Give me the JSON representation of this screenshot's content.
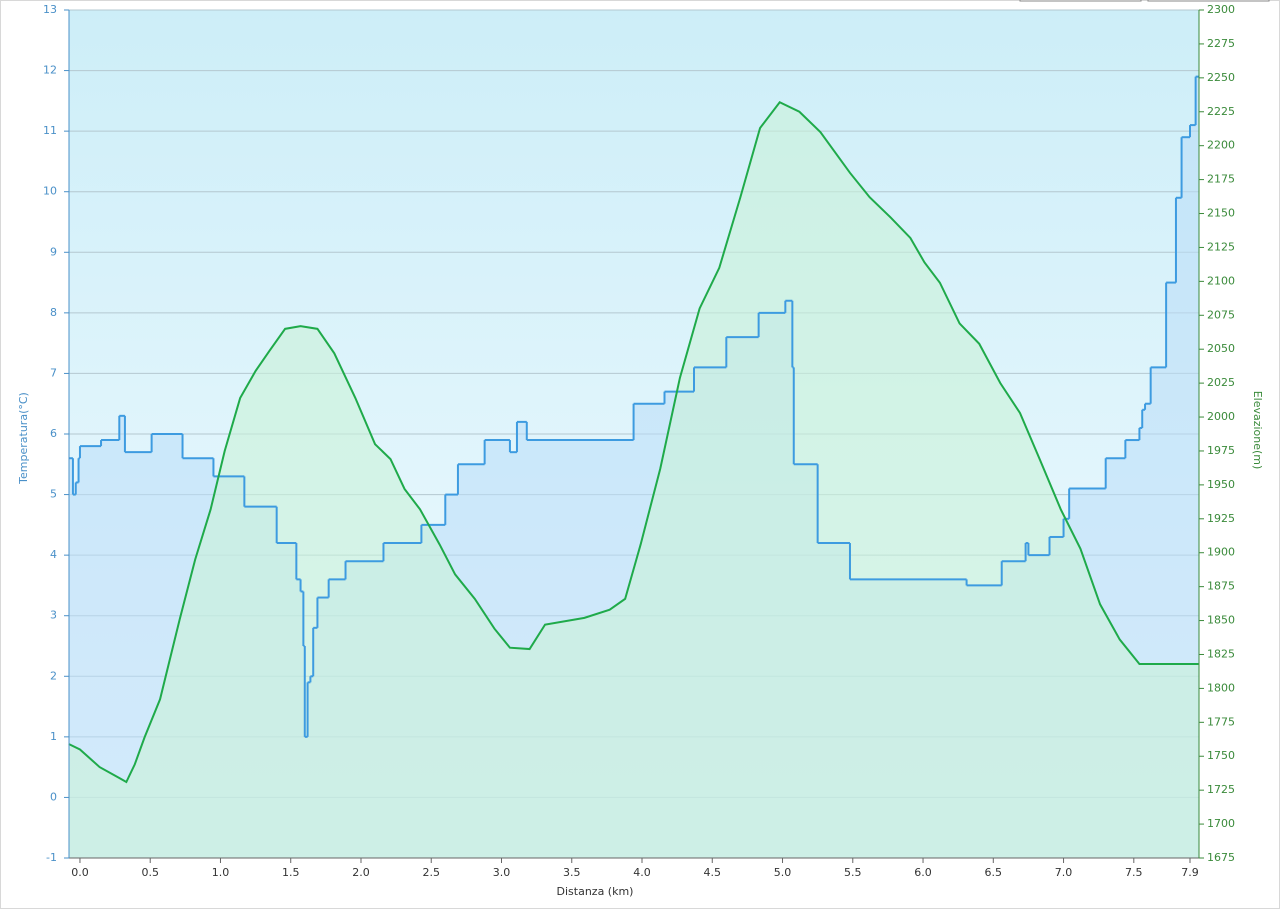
{
  "chart_data": {
    "type": "line",
    "xlabel": "Distanza  (km)",
    "ylabel": "Temperatura(°C)",
    "y2label": "Elevazione(m)",
    "xlim": [
      -0.078,
      7.964
    ],
    "xticks": [
      {
        "value": 0,
        "label": "0.0"
      },
      0.5,
      {
        "value": 1,
        "label": "1.0"
      },
      1.5,
      {
        "value": 2,
        "label": "2.0"
      },
      2.5,
      {
        "value": 3,
        "label": "3.0"
      },
      3.5,
      {
        "value": 4,
        "label": "4.0"
      },
      4.5,
      {
        "value": 5,
        "label": "5.0"
      },
      5.5,
      {
        "value": 6,
        "label": "6.0"
      },
      6.5,
      {
        "value": 7,
        "label": "7.0"
      },
      7.5,
      7.9
    ],
    "ylim": [
      -1,
      13
    ],
    "yticks": [
      -1,
      0,
      1,
      2,
      3,
      4,
      5,
      6,
      7,
      8,
      9,
      10,
      11,
      12,
      13
    ],
    "y2lim": [
      1675,
      2300
    ],
    "y2ticks": [
      1675,
      1700,
      1725,
      1750,
      1775,
      1800,
      1825,
      1850,
      1875,
      1900,
      1925,
      1950,
      1975,
      2000,
      2025,
      2050,
      2075,
      2100,
      2125,
      2150,
      2175,
      2200,
      2225,
      2250,
      2275,
      2300
    ],
    "grid": true,
    "series": [
      {
        "color": "#3d9be0",
        "fill": "#b9dcf7",
        "step": "after",
        "x": [
          -0.08,
          -0.05,
          -0.03,
          -0.01,
          0,
          0.15,
          0.28,
          0.32,
          0.51,
          0.73,
          0.95,
          1.17,
          1.4,
          1.54,
          1.57,
          1.59,
          1.6,
          1.62,
          1.64,
          1.66,
          1.69,
          1.77,
          1.89,
          2.16,
          2.43,
          2.6,
          2.69,
          2.88,
          3.06,
          3.11,
          3.18,
          3.94,
          4.16,
          4.37,
          4.6,
          4.83,
          5.02,
          5.07,
          5.08,
          5.25,
          5.48,
          6.31,
          6.56,
          6.73,
          6.75,
          6.9,
          7.0,
          7.04,
          7.3,
          7.44,
          7.54,
          7.56,
          7.58,
          7.62,
          7.73,
          7.8,
          7.84,
          7.9,
          7.94
        ],
        "values": [
          5.6,
          5.0,
          5.2,
          5.6,
          5.8,
          5.9,
          6.3,
          5.7,
          6.0,
          5.6,
          5.3,
          4.8,
          4.2,
          3.6,
          3.4,
          2.5,
          1.0,
          1.9,
          2.0,
          2.8,
          3.3,
          3.6,
          3.9,
          4.2,
          4.5,
          5.0,
          5.5,
          5.9,
          5.7,
          6.2,
          5.9,
          6.5,
          6.7,
          7.1,
          7.6,
          8.0,
          8.2,
          7.1,
          5.5,
          4.2,
          3.6,
          3.5,
          3.9,
          4.2,
          4.0,
          4.3,
          4.6,
          5.1,
          5.6,
          5.9,
          6.1,
          6.4,
          6.5,
          7.1,
          8.5,
          9.9,
          10.9,
          11.1,
          11.9
        ]
      },
      {
        "color": "#1faa4a",
        "fill": "#c9f2d9",
        "axis": "y2",
        "x": [
          -0.08,
          0,
          0.14,
          0.28,
          0.33,
          0.39,
          0.46,
          0.57,
          0.71,
          0.82,
          0.93,
          1.03,
          1.14,
          1.25,
          1.35,
          1.46,
          1.57,
          1.69,
          1.81,
          1.96,
          2.1,
          2.21,
          2.31,
          2.42,
          2.56,
          2.67,
          2.81,
          2.95,
          3.06,
          3.2,
          3.31,
          3.59,
          3.77,
          3.88,
          3.99,
          4.13,
          4.27,
          4.41,
          4.55,
          4.7,
          4.84,
          4.98,
          5.12,
          5.27,
          5.48,
          5.62,
          5.77,
          5.91,
          6.01,
          6.12,
          6.26,
          6.4,
          6.55,
          6.69,
          6.83,
          6.98,
          7.12,
          7.26,
          7.4,
          7.54,
          7.69,
          7.96
        ],
        "values": [
          1759,
          1755,
          1742,
          1734,
          1731,
          1744,
          1764,
          1792,
          1851,
          1895,
          1932,
          1975,
          2014,
          2034,
          2049,
          2065,
          2067,
          2065,
          2047,
          2014,
          1980,
          1969,
          1947,
          1932,
          1906,
          1884,
          1866,
          1844,
          1830,
          1829,
          1847,
          1852,
          1858,
          1866,
          1906,
          1962,
          2029,
          2080,
          2110,
          2162,
          2213,
          2232,
          2225,
          2210,
          2180,
          2162,
          2147,
          2132,
          2114,
          2099,
          2069,
          2054,
          2025,
          2003,
          1969,
          1932,
          1903,
          1862,
          1836,
          1818,
          1818,
          1818
        ]
      }
    ]
  }
}
